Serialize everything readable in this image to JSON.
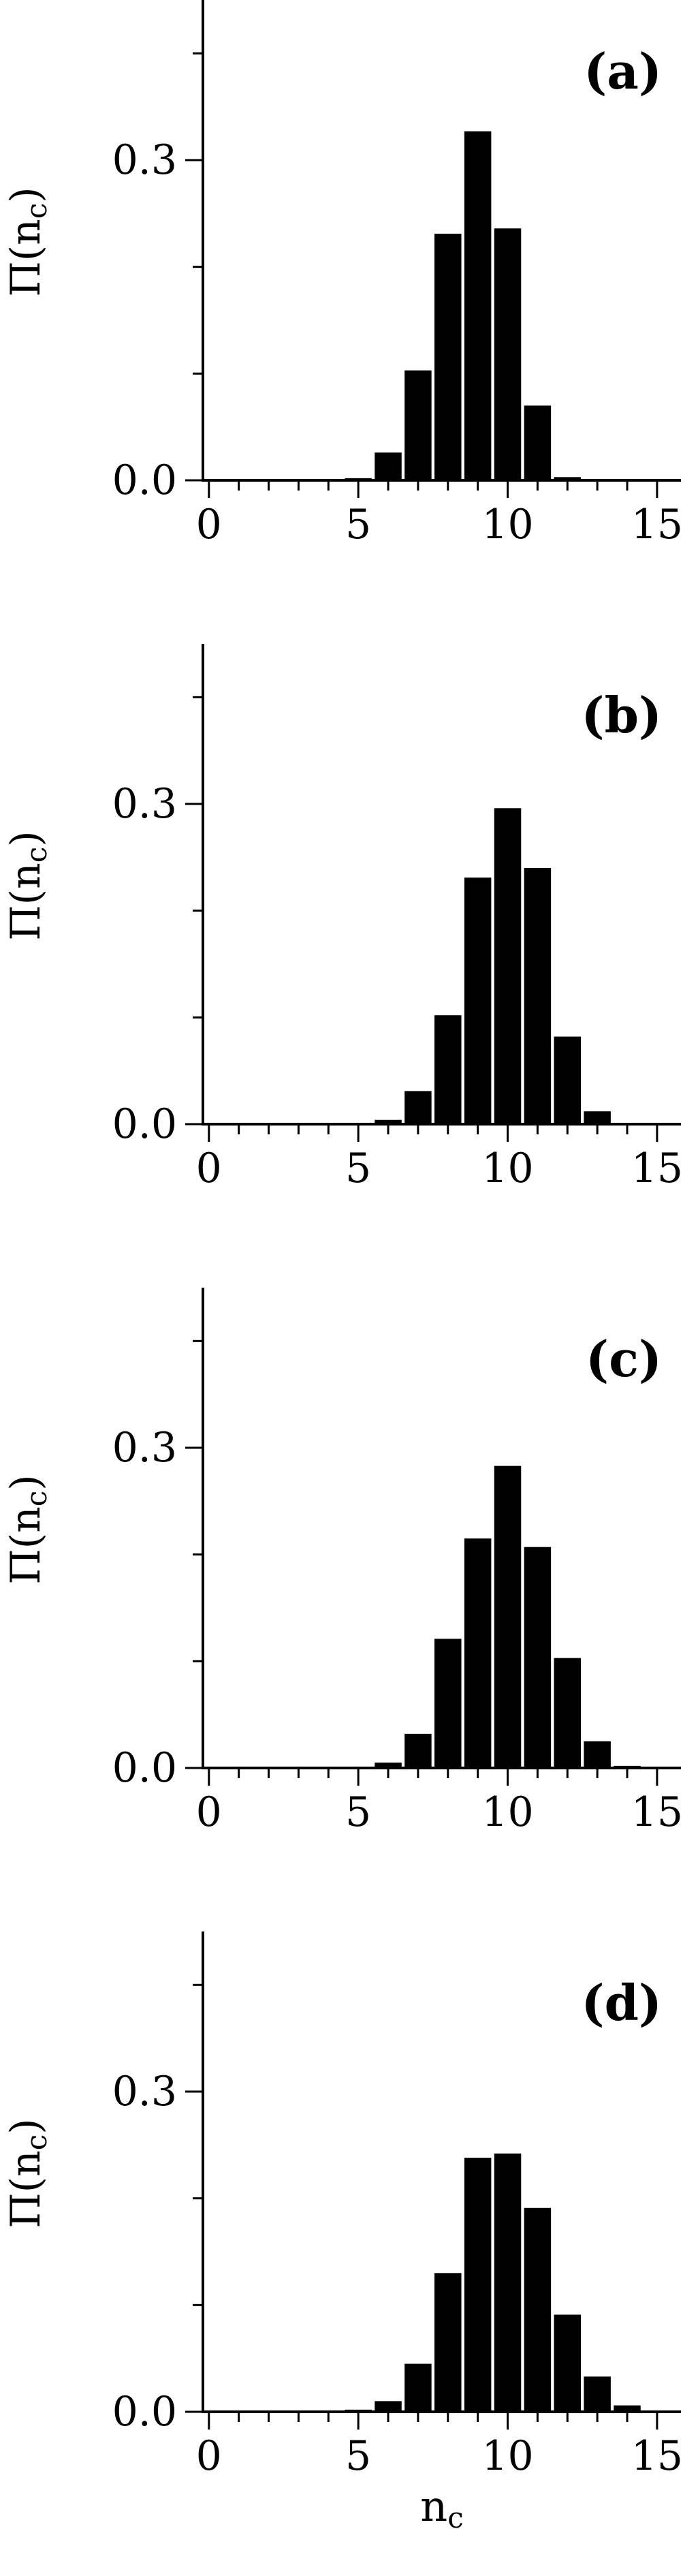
{
  "chart_data": [
    {
      "type": "bar",
      "panel_label": "(a)",
      "ylabel": "Π(n",
      "ylabel_sub": "c",
      "ylabel_close": ")",
      "xlabel": "",
      "xlim": [
        -0.2,
        15.8
      ],
      "ylim": [
        0,
        0.45
      ],
      "xticks": [
        "0",
        "5",
        "10",
        "15"
      ],
      "yticks": [
        "0.0",
        "0.3"
      ],
      "x": [
        0,
        1,
        2,
        3,
        4,
        5,
        6,
        7,
        8,
        9,
        10,
        11,
        12,
        13,
        14,
        15
      ],
      "values": [
        0,
        0,
        0,
        0,
        0,
        0.002,
        0.026,
        0.103,
        0.231,
        0.327,
        0.236,
        0.07,
        0.003,
        0,
        0,
        0
      ]
    },
    {
      "type": "bar",
      "panel_label": "(b)",
      "ylabel": "Π(n",
      "ylabel_sub": "c",
      "ylabel_close": ")",
      "xlabel": "",
      "xlim": [
        -0.2,
        15.8
      ],
      "ylim": [
        0,
        0.45
      ],
      "xticks": [
        "0",
        "5",
        "10",
        "15"
      ],
      "yticks": [
        "0.0",
        "0.3"
      ],
      "x": [
        0,
        1,
        2,
        3,
        4,
        5,
        6,
        7,
        8,
        9,
        10,
        11,
        12,
        13,
        14,
        15
      ],
      "values": [
        0,
        0,
        0,
        0,
        0,
        0,
        0.004,
        0.031,
        0.102,
        0.231,
        0.296,
        0.24,
        0.082,
        0.012,
        0,
        0
      ]
    },
    {
      "type": "bar",
      "panel_label": "(c)",
      "ylabel": "Π(n",
      "ylabel_sub": "c",
      "ylabel_close": ")",
      "xlabel": "",
      "xlim": [
        -0.2,
        15.8
      ],
      "ylim": [
        0,
        0.45
      ],
      "xticks": [
        "0",
        "5",
        "10",
        "15"
      ],
      "yticks": [
        "0.0",
        "0.3"
      ],
      "x": [
        0,
        1,
        2,
        3,
        4,
        5,
        6,
        7,
        8,
        9,
        10,
        11,
        12,
        13,
        14,
        15
      ],
      "values": [
        0,
        0,
        0,
        0,
        0,
        0,
        0.005,
        0.032,
        0.121,
        0.215,
        0.283,
        0.207,
        0.103,
        0.025,
        0.002,
        0
      ]
    },
    {
      "type": "bar",
      "panel_label": "(d)",
      "ylabel": "Π(n",
      "ylabel_sub": "c",
      "ylabel_close": ")",
      "xlabel": "n",
      "xlabel_sub": "c",
      "xlim": [
        -0.2,
        15.8
      ],
      "ylim": [
        0,
        0.45
      ],
      "xticks": [
        "0",
        "5",
        "10",
        "15"
      ],
      "yticks": [
        "0.0",
        "0.3"
      ],
      "x": [
        0,
        1,
        2,
        3,
        4,
        5,
        6,
        7,
        8,
        9,
        10,
        11,
        12,
        13,
        14,
        15
      ],
      "values": [
        0,
        0,
        0,
        0,
        0,
        0.002,
        0.01,
        0.045,
        0.13,
        0.238,
        0.242,
        0.191,
        0.091,
        0.033,
        0.006,
        0
      ]
    }
  ]
}
